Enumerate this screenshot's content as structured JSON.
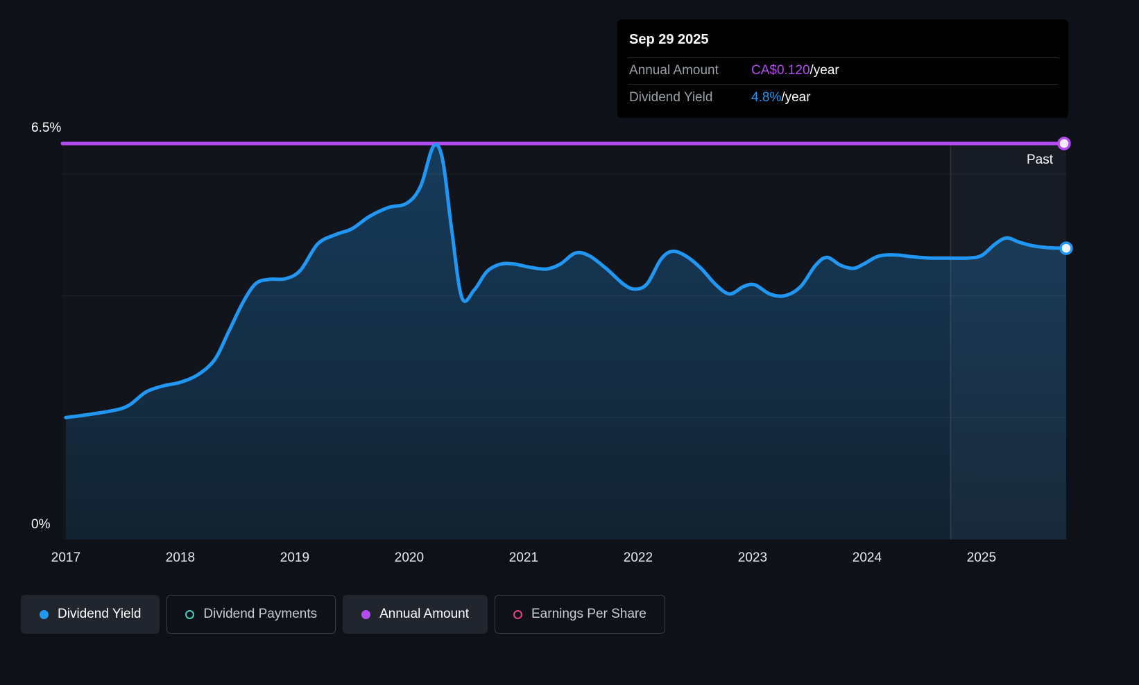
{
  "colors": {
    "background": "#0e1218",
    "accent_blue": "#2196f3",
    "accent_purple": "#b44bf2",
    "accent_teal": "#4acfbb",
    "accent_pink": "#e0457b"
  },
  "tooltip": {
    "date": "Sep 29 2025",
    "rows": [
      {
        "label": "Annual Amount",
        "value": "CA$0.120",
        "suffix": "/year",
        "color": "#b44bf2"
      },
      {
        "label": "Dividend Yield",
        "value": "4.8%",
        "suffix": "/year",
        "color": "#2196f3"
      }
    ]
  },
  "axes": {
    "y_top_label": "6.5%",
    "y_bottom_label": "0%",
    "past_label": "Past",
    "x_ticks": [
      "2017",
      "2018",
      "2019",
      "2020",
      "2021",
      "2022",
      "2023",
      "2024",
      "2025"
    ]
  },
  "legend": {
    "items": [
      {
        "label": "Dividend Yield",
        "color": "#2196f3",
        "style": "filled",
        "state": "active"
      },
      {
        "label": "Dividend Payments",
        "color": "#4acfbb",
        "style": "ring",
        "state": "inactive"
      },
      {
        "label": "Annual Amount",
        "color": "#b44bf2",
        "style": "filled",
        "state": "active"
      },
      {
        "label": "Earnings Per Share",
        "color": "#e0457b",
        "style": "ring",
        "state": "inactive"
      }
    ]
  },
  "chart_data": {
    "type": "area",
    "title": "Dividend yield history",
    "ylim": [
      0,
      6.5
    ],
    "x_range": [
      2016.97,
      2025.74
    ],
    "gridlines_pct": [
      2,
      4,
      6
    ],
    "past_divider_x": 2024.73,
    "series": [
      {
        "name": "Dividend Yield",
        "color": "#2196f3",
        "unit": "%",
        "points": [
          [
            2017.0,
            2.0
          ],
          [
            2017.2,
            2.05
          ],
          [
            2017.42,
            2.12
          ],
          [
            2017.55,
            2.2
          ],
          [
            2017.7,
            2.42
          ],
          [
            2017.85,
            2.52
          ],
          [
            2018.0,
            2.58
          ],
          [
            2018.15,
            2.7
          ],
          [
            2018.3,
            2.95
          ],
          [
            2018.42,
            3.4
          ],
          [
            2018.55,
            3.9
          ],
          [
            2018.66,
            4.2
          ],
          [
            2018.78,
            4.27
          ],
          [
            2018.92,
            4.28
          ],
          [
            2019.05,
            4.42
          ],
          [
            2019.2,
            4.85
          ],
          [
            2019.35,
            5.0
          ],
          [
            2019.5,
            5.1
          ],
          [
            2019.65,
            5.3
          ],
          [
            2019.82,
            5.45
          ],
          [
            2019.98,
            5.52
          ],
          [
            2020.1,
            5.8
          ],
          [
            2020.21,
            6.45
          ],
          [
            2020.29,
            6.25
          ],
          [
            2020.37,
            5.1
          ],
          [
            2020.46,
            3.97
          ],
          [
            2020.57,
            4.1
          ],
          [
            2020.68,
            4.4
          ],
          [
            2020.8,
            4.52
          ],
          [
            2020.92,
            4.52
          ],
          [
            2021.05,
            4.47
          ],
          [
            2021.2,
            4.44
          ],
          [
            2021.32,
            4.52
          ],
          [
            2021.45,
            4.7
          ],
          [
            2021.57,
            4.66
          ],
          [
            2021.72,
            4.45
          ],
          [
            2021.88,
            4.18
          ],
          [
            2021.98,
            4.11
          ],
          [
            2022.08,
            4.2
          ],
          [
            2022.2,
            4.6
          ],
          [
            2022.3,
            4.73
          ],
          [
            2022.42,
            4.65
          ],
          [
            2022.55,
            4.45
          ],
          [
            2022.68,
            4.18
          ],
          [
            2022.8,
            4.03
          ],
          [
            2022.92,
            4.15
          ],
          [
            2023.02,
            4.18
          ],
          [
            2023.15,
            4.03
          ],
          [
            2023.28,
            4.0
          ],
          [
            2023.42,
            4.15
          ],
          [
            2023.55,
            4.5
          ],
          [
            2023.65,
            4.63
          ],
          [
            2023.77,
            4.5
          ],
          [
            2023.88,
            4.45
          ],
          [
            2023.97,
            4.52
          ],
          [
            2024.1,
            4.65
          ],
          [
            2024.25,
            4.67
          ],
          [
            2024.4,
            4.64
          ],
          [
            2024.55,
            4.62
          ],
          [
            2024.72,
            4.62
          ],
          [
            2024.88,
            4.62
          ],
          [
            2025.0,
            4.66
          ],
          [
            2025.12,
            4.85
          ],
          [
            2025.22,
            4.95
          ],
          [
            2025.33,
            4.88
          ],
          [
            2025.45,
            4.82
          ],
          [
            2025.58,
            4.79
          ],
          [
            2025.74,
            4.78
          ]
        ]
      },
      {
        "name": "Annual Amount",
        "color": "#b44bf2",
        "value": "CA$0.120/year",
        "display_level_pct": 6.5
      }
    ]
  }
}
